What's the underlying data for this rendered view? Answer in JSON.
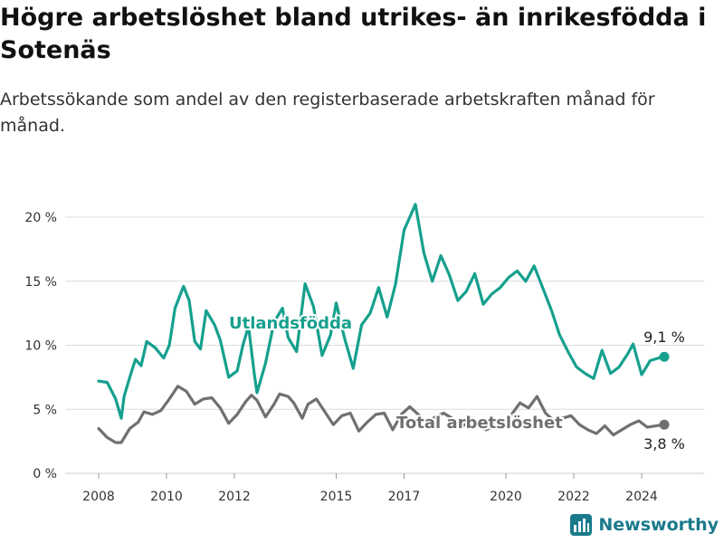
{
  "header": {
    "title": "Högre arbetslöshet bland utrikes- än inrikesfödda i Sotenäs",
    "subtitle": "Arbetssökande som andel av den registerbaserade arbetskraften månad för månad."
  },
  "brand": {
    "name": "Newsworthy",
    "icon": "newsworthy-logo-icon"
  },
  "colors": {
    "series_foreign": "#16a08e",
    "series_total": "#707070",
    "grid": "#dcdcdc"
  },
  "chart_data": {
    "type": "line",
    "x_ticks": [
      "2008",
      "2010",
      "2012",
      "2015",
      "2017",
      "2020",
      "2022",
      "2024"
    ],
    "y_ticks": [
      "0 %",
      "5 %",
      "10 %",
      "15 %",
      "20 %"
    ],
    "ylim": [
      0,
      20
    ],
    "xlim": [
      "2008-01",
      "2025-01"
    ],
    "grid": true,
    "series": [
      {
        "name": "Utlandsfödda",
        "color": "#16a08e",
        "end_label": "9,1 %",
        "points": [
          [
            "2008-01",
            7.2
          ],
          [
            "2008-04",
            7.1
          ],
          [
            "2008-07",
            5.8
          ],
          [
            "2008-09",
            4.3
          ],
          [
            "2008-10",
            6.0
          ],
          [
            "2008-12",
            7.5
          ],
          [
            "2009-02",
            8.9
          ],
          [
            "2009-04",
            8.4
          ],
          [
            "2009-06",
            10.3
          ],
          [
            "2009-09",
            9.8
          ],
          [
            "2009-12",
            9.0
          ],
          [
            "2010-02",
            10.0
          ],
          [
            "2010-04",
            12.9
          ],
          [
            "2010-07",
            14.6
          ],
          [
            "2010-09",
            13.5
          ],
          [
            "2010-11",
            10.3
          ],
          [
            "2011-01",
            9.7
          ],
          [
            "2011-03",
            12.7
          ],
          [
            "2011-06",
            11.6
          ],
          [
            "2011-08",
            10.4
          ],
          [
            "2011-11",
            7.5
          ],
          [
            "2012-02",
            8.0
          ],
          [
            "2012-04",
            10.0
          ],
          [
            "2012-06",
            11.5
          ],
          [
            "2012-08",
            7.8
          ],
          [
            "2012-09",
            6.3
          ],
          [
            "2012-12",
            8.6
          ],
          [
            "2013-03",
            11.8
          ],
          [
            "2013-06",
            12.9
          ],
          [
            "2013-08",
            10.6
          ],
          [
            "2013-11",
            9.5
          ],
          [
            "2014-02",
            14.8
          ],
          [
            "2014-05",
            13.0
          ],
          [
            "2014-08",
            9.2
          ],
          [
            "2014-11",
            10.8
          ],
          [
            "2015-01",
            13.3
          ],
          [
            "2015-04",
            10.5
          ],
          [
            "2015-07",
            8.2
          ],
          [
            "2015-10",
            11.6
          ],
          [
            "2016-01",
            12.5
          ],
          [
            "2016-04",
            14.5
          ],
          [
            "2016-07",
            12.2
          ],
          [
            "2016-10",
            14.8
          ],
          [
            "2017-01",
            19.0
          ],
          [
            "2017-03",
            20.0
          ],
          [
            "2017-05",
            21.0
          ],
          [
            "2017-08",
            17.2
          ],
          [
            "2017-11",
            15.0
          ],
          [
            "2018-02",
            17.0
          ],
          [
            "2018-05",
            15.5
          ],
          [
            "2018-08",
            13.5
          ],
          [
            "2018-11",
            14.2
          ],
          [
            "2019-02",
            15.6
          ],
          [
            "2019-05",
            13.2
          ],
          [
            "2019-08",
            14.0
          ],
          [
            "2019-11",
            14.5
          ],
          [
            "2020-02",
            15.3
          ],
          [
            "2020-05",
            15.8
          ],
          [
            "2020-08",
            15.0
          ],
          [
            "2020-11",
            16.2
          ],
          [
            "2021-02",
            14.5
          ],
          [
            "2021-05",
            12.8
          ],
          [
            "2021-08",
            10.8
          ],
          [
            "2021-11",
            9.5
          ],
          [
            "2022-02",
            8.3
          ],
          [
            "2022-05",
            7.8
          ],
          [
            "2022-08",
            7.4
          ],
          [
            "2022-11",
            9.6
          ],
          [
            "2023-02",
            7.8
          ],
          [
            "2023-05",
            8.3
          ],
          [
            "2023-08",
            9.3
          ],
          [
            "2023-10",
            10.1
          ],
          [
            "2024-01",
            7.7
          ],
          [
            "2024-04",
            8.8
          ],
          [
            "2024-07",
            9.0
          ],
          [
            "2024-09",
            9.1
          ]
        ]
      },
      {
        "name": "Total arbetslöshet",
        "color": "#707070",
        "end_label": "3,8 %",
        "points": [
          [
            "2008-01",
            3.5
          ],
          [
            "2008-04",
            2.8
          ],
          [
            "2008-07",
            2.4
          ],
          [
            "2008-09",
            2.4
          ],
          [
            "2008-12",
            3.5
          ],
          [
            "2009-03",
            4.0
          ],
          [
            "2009-05",
            4.8
          ],
          [
            "2009-08",
            4.6
          ],
          [
            "2009-11",
            4.9
          ],
          [
            "2010-02",
            5.8
          ],
          [
            "2010-05",
            6.8
          ],
          [
            "2010-08",
            6.4
          ],
          [
            "2010-11",
            5.4
          ],
          [
            "2011-02",
            5.8
          ],
          [
            "2011-05",
            5.9
          ],
          [
            "2011-08",
            5.1
          ],
          [
            "2011-11",
            3.9
          ],
          [
            "2012-02",
            4.6
          ],
          [
            "2012-05",
            5.6
          ],
          [
            "2012-07",
            6.1
          ],
          [
            "2012-09",
            5.7
          ],
          [
            "2012-12",
            4.4
          ],
          [
            "2013-03",
            5.4
          ],
          [
            "2013-05",
            6.2
          ],
          [
            "2013-08",
            6.0
          ],
          [
            "2013-10",
            5.5
          ],
          [
            "2014-01",
            4.3
          ],
          [
            "2014-03",
            5.4
          ],
          [
            "2014-06",
            5.8
          ],
          [
            "2014-09",
            4.8
          ],
          [
            "2014-12",
            3.8
          ],
          [
            "2015-03",
            4.5
          ],
          [
            "2015-06",
            4.7
          ],
          [
            "2015-09",
            3.3
          ],
          [
            "2015-12",
            4.0
          ],
          [
            "2016-03",
            4.6
          ],
          [
            "2016-06",
            4.7
          ],
          [
            "2016-09",
            3.4
          ],
          [
            "2016-12",
            4.6
          ],
          [
            "2017-03",
            5.2
          ],
          [
            "2017-06",
            4.6
          ],
          [
            "2017-09",
            3.9
          ],
          [
            "2017-12",
            4.4
          ],
          [
            "2018-03",
            4.7
          ],
          [
            "2018-06",
            4.3
          ],
          [
            "2018-09",
            3.6
          ],
          [
            "2018-12",
            4.0
          ],
          [
            "2019-03",
            3.8
          ],
          [
            "2019-06",
            3.4
          ],
          [
            "2019-09",
            3.7
          ],
          [
            "2019-12",
            4.0
          ],
          [
            "2020-03",
            4.6
          ],
          [
            "2020-06",
            5.5
          ],
          [
            "2020-09",
            5.1
          ],
          [
            "2020-12",
            6.0
          ],
          [
            "2021-03",
            4.7
          ],
          [
            "2021-06",
            4.1
          ],
          [
            "2021-09",
            4.3
          ],
          [
            "2021-12",
            4.5
          ],
          [
            "2022-03",
            3.8
          ],
          [
            "2022-06",
            3.4
          ],
          [
            "2022-09",
            3.1
          ],
          [
            "2022-12",
            3.7
          ],
          [
            "2023-03",
            3.0
          ],
          [
            "2023-06",
            3.4
          ],
          [
            "2023-09",
            3.8
          ],
          [
            "2023-12",
            4.1
          ],
          [
            "2024-03",
            3.6
          ],
          [
            "2024-06",
            3.7
          ],
          [
            "2024-09",
            3.8
          ]
        ]
      }
    ]
  }
}
